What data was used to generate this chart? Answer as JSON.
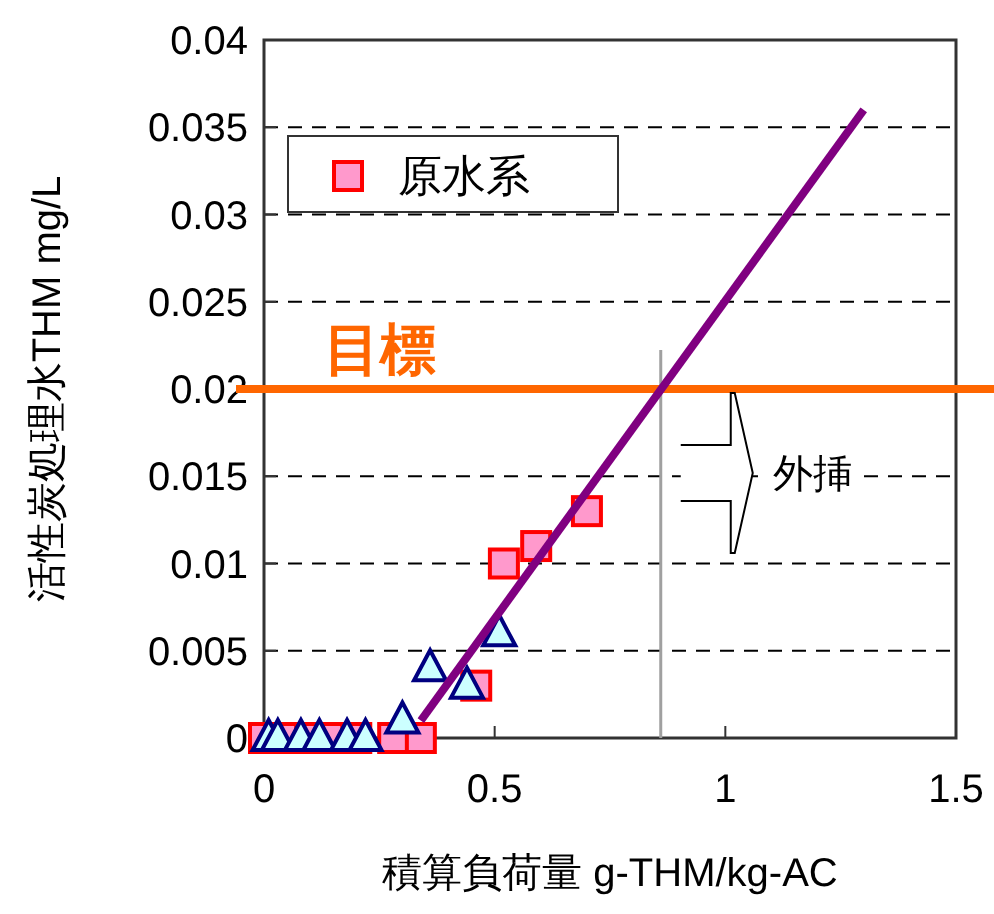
{
  "chart_data": {
    "type": "scatter",
    "xlabel": "積算負荷量 g-THM/kg-AC",
    "ylabel": "活性炭処理水THM mg/L",
    "xlim": [
      0,
      1.5
    ],
    "ylim": [
      0,
      0.04
    ],
    "xticks": [
      0,
      0.5,
      1,
      1.5
    ],
    "yticks": [
      0,
      0.005,
      0.01,
      0.015,
      0.02,
      0.025,
      0.03,
      0.035,
      0.04
    ],
    "grid": "y",
    "legend": "top left",
    "series": [
      {
        "name": "原水系",
        "color": "#ff99cc",
        "marker": "square",
        "x": [
          0,
          0.05,
          0.1,
          0.15,
          0.2,
          0.28,
          0.34,
          0.46,
          0.52,
          0.59,
          0.7
        ],
        "values": [
          0,
          0,
          0,
          0,
          0,
          0,
          0,
          0.003,
          0.01,
          0.011,
          0.013
        ]
      },
      {
        "color": "#ccffff",
        "marker": "triangle",
        "x": [
          0.01,
          0.03,
          0.08,
          0.12,
          0.18,
          0.22,
          0.3,
          0.36,
          0.44,
          0.51
        ],
        "values": [
          0,
          0,
          0,
          0,
          0,
          0,
          0.001,
          0.004,
          0.003,
          0.006
        ]
      },
      {
        "type": "line",
        "color": "#800080",
        "x": [
          0.34,
          1.3
        ],
        "values": [
          0.001,
          0.036
        ]
      }
    ],
    "ref_lines": [
      {
        "axis": "y",
        "value": 0.02,
        "label": "目標",
        "color": "#ff6600"
      },
      {
        "axis": "x",
        "value": 0.86,
        "color": "#a0a0a0"
      }
    ],
    "annotations": [
      "外挿"
    ]
  }
}
